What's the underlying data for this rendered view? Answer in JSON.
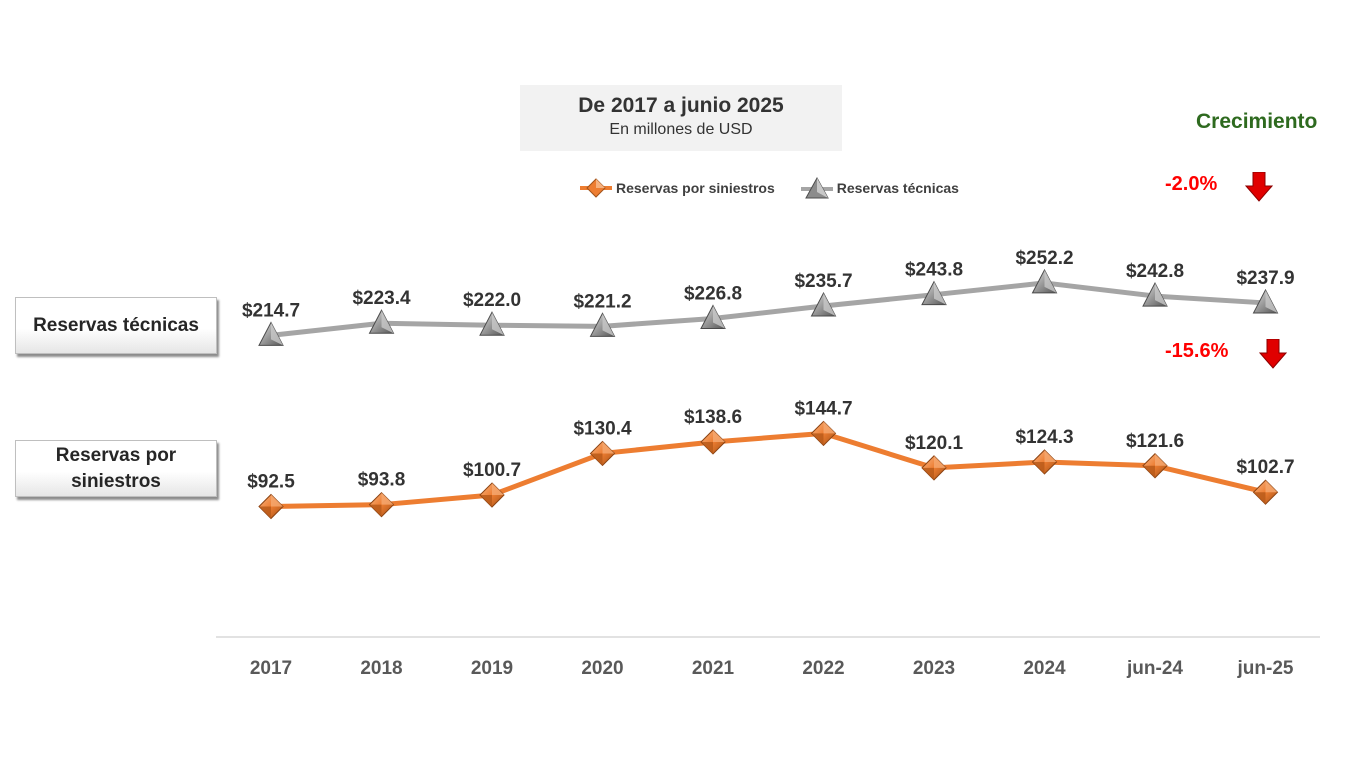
{
  "title": {
    "main": "De 2017 a junio 2025",
    "subtitle": "En millones de USD"
  },
  "growth": {
    "title": "Crecimiento",
    "tecnicas": "-2.0%",
    "siniestros": "-15.6%"
  },
  "labels": {
    "tecnicas": "Reservas técnicas",
    "siniestros_line1": "Reservas por",
    "siniestros_line2": "siniestros"
  },
  "colors": {
    "siniestros": "#ed7d31",
    "tecnicas": "#a5a5a5",
    "growth_title": "#2e6a1f",
    "negative": "#ff0000"
  },
  "chart_data": {
    "type": "line",
    "title": "De 2017 a junio 2025",
    "subtitle": "En millones de USD",
    "categories": [
      "2017",
      "2018",
      "2019",
      "2020",
      "2021",
      "2022",
      "2023",
      "2024",
      "jun-24",
      "jun-25"
    ],
    "series": [
      {
        "name": "Reservas por siniestros",
        "values": [
          92.5,
          93.8,
          100.7,
          130.4,
          138.6,
          144.7,
          120.1,
          124.3,
          121.6,
          102.7
        ],
        "labels": [
          "$92.5",
          "$93.8",
          "$100.7",
          "$130.4",
          "$138.6",
          "$144.7",
          "$120.1",
          "$124.3",
          "$121.6",
          "$102.7"
        ],
        "color": "#ed7d31",
        "marker": "diamond"
      },
      {
        "name": "Reservas técnicas",
        "values": [
          214.7,
          223.4,
          222.0,
          221.2,
          226.8,
          235.7,
          243.8,
          252.2,
          242.8,
          237.9
        ],
        "labels": [
          "$214.7",
          "$223.4",
          "$222.0",
          "$221.2",
          "$226.8",
          "$235.7",
          "$243.8",
          "$252.2",
          "$242.8",
          "$237.9"
        ],
        "color": "#a5a5a5",
        "marker": "triangle"
      }
    ],
    "legend": "top-center",
    "grid": false
  }
}
